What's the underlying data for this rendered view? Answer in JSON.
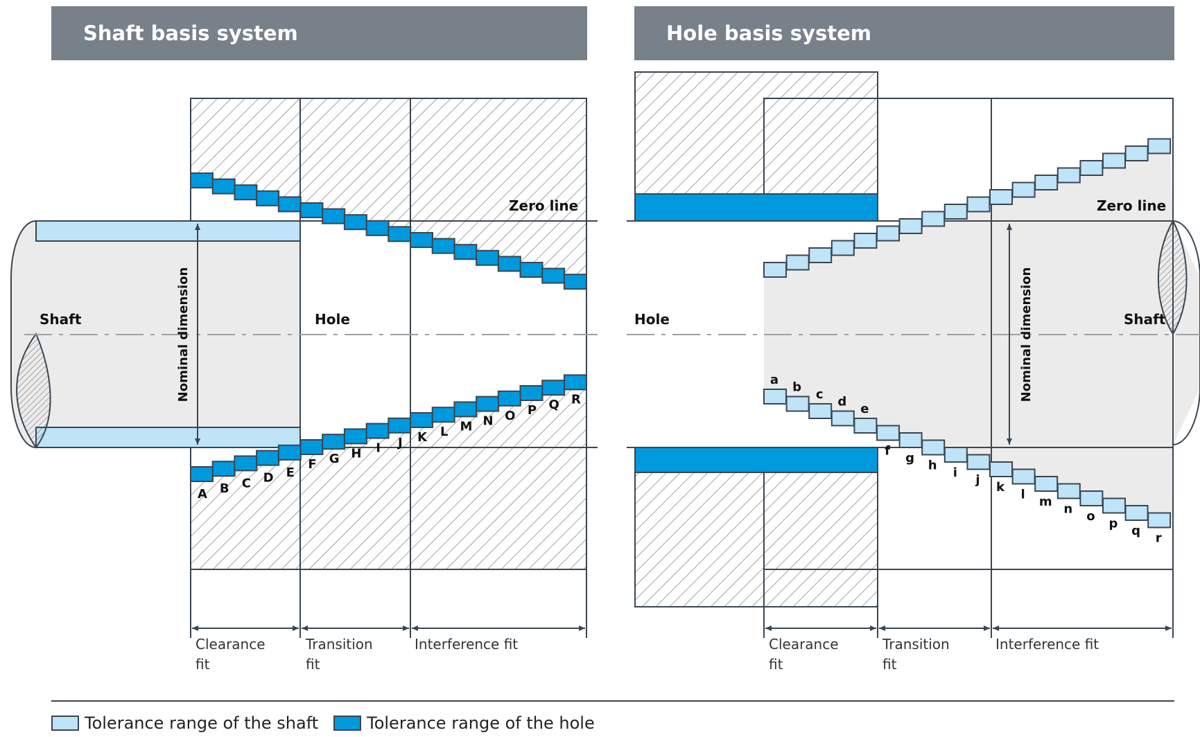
{
  "left_panel": {
    "title": "Shaft basis system",
    "zero_line": "Zero line",
    "shaft_label": "Shaft",
    "hole_label": "Hole",
    "nominal_label": "Nominal dimension",
    "hole_letters": [
      "A",
      "B",
      "C",
      "D",
      "E",
      "F",
      "G",
      "H",
      "I",
      "J",
      "K",
      "L",
      "M",
      "N",
      "O",
      "P",
      "Q",
      "R"
    ],
    "fits": {
      "clearance": [
        "Clearance",
        "fit"
      ],
      "transition": [
        "Transition",
        "fit"
      ],
      "interference": "Interference fit"
    }
  },
  "right_panel": {
    "title": "Hole basis system",
    "zero_line": "Zero line",
    "shaft_label": "Shaft",
    "hole_label": "Hole",
    "nominal_label": "Nominal dimension",
    "shaft_letters": [
      "a",
      "b",
      "c",
      "d",
      "e",
      "f",
      "g",
      "h",
      "i",
      "j",
      "k",
      "l",
      "m",
      "n",
      "o",
      "p",
      "q",
      "r"
    ],
    "fits": {
      "clearance": [
        "Clearance",
        "fit"
      ],
      "transition": [
        "Transition",
        "fit"
      ],
      "interference": "Interference fit"
    }
  },
  "legend": {
    "shaft": "Tolerance range of the shaft",
    "hole": "Tolerance range of the hole"
  },
  "colors": {
    "banner": "#78808a",
    "shaft_tolerance": "#bfe3f7",
    "hole_tolerance": "#0099dd",
    "shaft_body": "#ebebeb",
    "outline": "#3a4550"
  }
}
